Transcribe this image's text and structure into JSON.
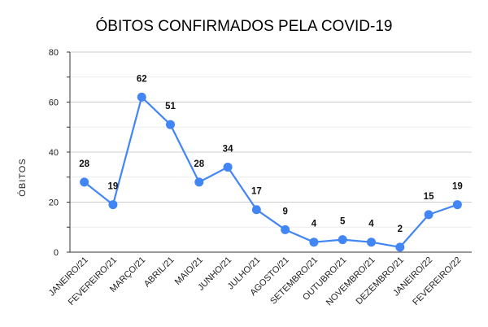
{
  "chart_data": {
    "type": "line",
    "title": "ÓBITOS CONFIRMADOS PELA COVID-19",
    "xlabel": "",
    "ylabel": "ÓBITOS",
    "ylim": [
      0,
      80
    ],
    "yticks": [
      0,
      20,
      40,
      60,
      80
    ],
    "grid": true,
    "legend": "none",
    "categories": [
      "JANEIRO/21",
      "FEVEREIRO/21",
      "MARÇO/21",
      "ABRIL/21",
      "MAIO/21",
      "JUNHO/21",
      "JULHO/21",
      "AGOSTO/21",
      "SETEMBRO/21",
      "OUTUBRO/21",
      "NOVEMBRO/21",
      "DEZEMBRO/21",
      "JANEIRO/22",
      "FEVEREIRO/22"
    ],
    "series": [
      {
        "values": [
          28,
          19,
          62,
          51,
          28,
          34,
          17,
          9,
          4,
          5,
          4,
          2,
          15,
          19
        ],
        "color": "#4285f4"
      }
    ]
  }
}
